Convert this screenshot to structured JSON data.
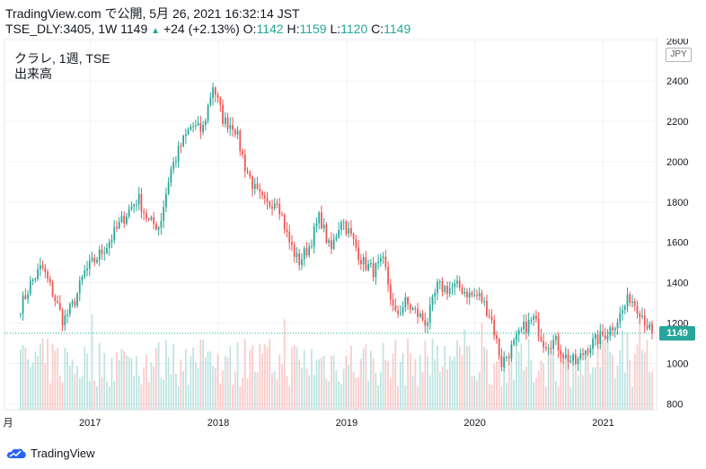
{
  "header": {
    "line1": "TradingView.com で公開, 5月 26, 2021 16:32:14 JST",
    "symbol": "TSE_DLY:3405, 1W",
    "last": "1149",
    "arrow": "▲",
    "change": "+24 (+2.13%)",
    "o_label": "O:",
    "o_value": "1142",
    "h_label": "H:",
    "h_value": "1159",
    "l_label": "L:",
    "l_value": "1120",
    "c_label": "C:",
    "c_value": "1149"
  },
  "legend": {
    "title": "クラレ, 1週, TSE",
    "volume": "出来高"
  },
  "currency": "JPY",
  "price_tag": "1149",
  "footer": {
    "brand": "TradingView"
  },
  "colors": {
    "up": "#26a69a",
    "down": "#ef5350",
    "grid": "#f0f3fa",
    "axis_text": "#131722"
  },
  "chart_data": {
    "type": "candlestick",
    "y_axis": {
      "ticks": [
        800,
        1000,
        1200,
        1400,
        1600,
        1800,
        2000,
        2200,
        2400,
        2600
      ],
      "range": [
        770,
        2610
      ],
      "side": "right"
    },
    "x_axis": {
      "ticks": [
        "月",
        "2017",
        "2018",
        "2019",
        "2020",
        "2021"
      ],
      "range": [
        "2016-05",
        "2021-06"
      ]
    },
    "last_price": 1149,
    "anchors": [
      [
        "2016-06",
        1280
      ],
      [
        "2016-07",
        1400
      ],
      [
        "2016-08",
        1480
      ],
      [
        "2016-09",
        1350
      ],
      [
        "2016-10",
        1210
      ],
      [
        "2016-11",
        1300
      ],
      [
        "2016-12",
        1450
      ],
      [
        "2017-02",
        1580
      ],
      [
        "2017-04",
        1750
      ],
      [
        "2017-05",
        1820
      ],
      [
        "2017-06",
        1700
      ],
      [
        "2017-07",
        1680
      ],
      [
        "2017-08",
        1950
      ],
      [
        "2017-09",
        2080
      ],
      [
        "2017-10",
        2180
      ],
      [
        "2017-11",
        2150
      ],
      [
        "2017-12",
        2380
      ],
      [
        "2018-01",
        2200
      ],
      [
        "2018-02",
        2180
      ],
      [
        "2018-03",
        1980
      ],
      [
        "2018-04",
        1850
      ],
      [
        "2018-05",
        1780
      ],
      [
        "2018-06",
        1820
      ],
      [
        "2018-07",
        1620
      ],
      [
        "2018-08",
        1500
      ],
      [
        "2018-09",
        1580
      ],
      [
        "2018-10",
        1730
      ],
      [
        "2018-11",
        1550
      ],
      [
        "2018-12",
        1720
      ],
      [
        "2019-01",
        1620
      ],
      [
        "2019-02",
        1500
      ],
      [
        "2019-03",
        1460
      ],
      [
        "2019-04",
        1500
      ],
      [
        "2019-05",
        1230
      ],
      [
        "2019-06",
        1300
      ],
      [
        "2019-07",
        1250
      ],
      [
        "2019-08",
        1200
      ],
      [
        "2019-09",
        1380
      ],
      [
        "2019-10",
        1370
      ],
      [
        "2019-11",
        1380
      ],
      [
        "2019-12",
        1340
      ],
      [
        "2020-01",
        1330
      ],
      [
        "2020-02",
        1230
      ],
      [
        "2020-03",
        1000
      ],
      [
        "2020-04",
        1080
      ],
      [
        "2020-05",
        1170
      ],
      [
        "2020-06",
        1220
      ],
      [
        "2020-07",
        1100
      ],
      [
        "2020-08",
        1110
      ],
      [
        "2020-09",
        1030
      ],
      [
        "2020-10",
        1000
      ],
      [
        "2020-11",
        1080
      ],
      [
        "2020-12",
        1120
      ],
      [
        "2021-01",
        1160
      ],
      [
        "2021-02",
        1230
      ],
      [
        "2021-03",
        1330
      ],
      [
        "2021-04",
        1260
      ],
      [
        "2021-05",
        1149
      ]
    ]
  }
}
